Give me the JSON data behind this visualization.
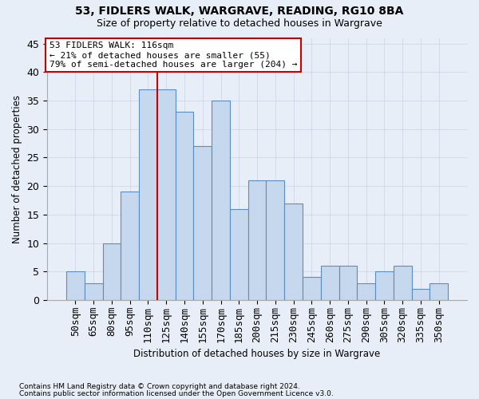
{
  "title1": "53, FIDLERS WALK, WARGRAVE, READING, RG10 8BA",
  "title2": "Size of property relative to detached houses in Wargrave",
  "xlabel": "Distribution of detached houses by size in Wargrave",
  "ylabel": "Number of detached properties",
  "footnote1": "Contains HM Land Registry data © Crown copyright and database right 2024.",
  "footnote2": "Contains public sector information licensed under the Open Government Licence v3.0.",
  "bar_labels": [
    "50sqm",
    "65sqm",
    "80sqm",
    "95sqm",
    "110sqm",
    "125sqm",
    "140sqm",
    "155sqm",
    "170sqm",
    "185sqm",
    "200sqm",
    "215sqm",
    "230sqm",
    "245sqm",
    "260sqm",
    "275sqm",
    "290sqm",
    "305sqm",
    "320sqm",
    "335sqm",
    "350sqm"
  ],
  "bar_values": [
    5,
    3,
    10,
    19,
    37,
    37,
    33,
    27,
    35,
    16,
    21,
    21,
    17,
    4,
    6,
    6,
    3,
    5,
    6,
    2,
    3
  ],
  "bar_color": "#c5d8ed",
  "bar_edge_color": "#5b8dc0",
  "grid_color": "#d0d8e8",
  "vline_color": "#cc0000",
  "annotation_line1": "53 FIDLERS WALK: 116sqm",
  "annotation_line2": "← 21% of detached houses are smaller (55)",
  "annotation_line3": "79% of semi-detached houses are larger (204) →",
  "annotation_box_facecolor": "#ffffff",
  "annotation_box_edgecolor": "#cc0000",
  "ylim_max": 46,
  "yticks": [
    0,
    5,
    10,
    15,
    20,
    25,
    30,
    35,
    40,
    45
  ],
  "bg_color": "#e8eef8"
}
